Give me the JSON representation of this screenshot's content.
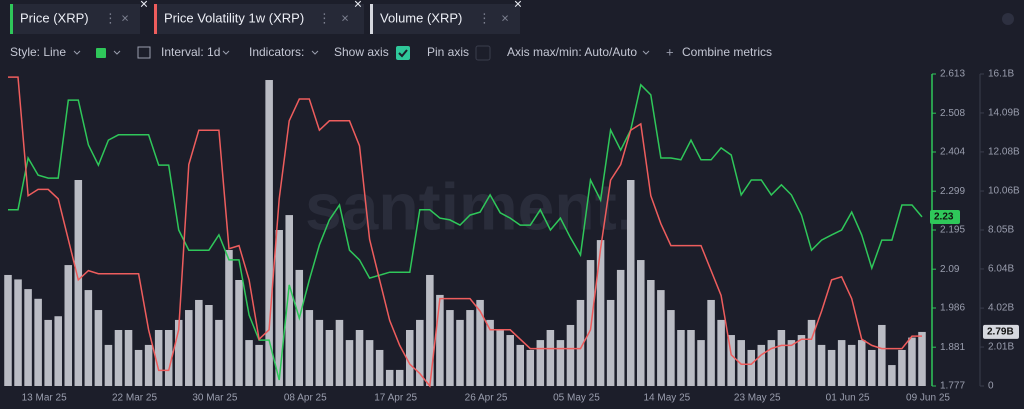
{
  "tabs": [
    "Price (XRP)",
    "Price Volatility 1w (XRP)",
    "Volume (XRP)"
  ],
  "toolbar": {
    "style": "Style: Line",
    "interval": "Interval: 1d",
    "indicators": "Indicators:",
    "show_axis": "Show axis",
    "pin_axis": "Pin axis",
    "axis_range": "Axis max/min: Auto/Auto",
    "combine": "Combine metrics"
  },
  "watermark": "santiment.",
  "chart_data": {
    "type": "line",
    "categories": [
      null,
      null,
      null,
      "13 Mar 25",
      null,
      null,
      null,
      null,
      null,
      null,
      null,
      null,
      "22 Mar 25",
      null,
      null,
      null,
      null,
      null,
      null,
      null,
      "30 Mar 25",
      null,
      null,
      null,
      null,
      null,
      null,
      null,
      null,
      "08 Apr 25",
      null,
      null,
      null,
      null,
      null,
      null,
      null,
      null,
      "17 Apr 25",
      null,
      null,
      null,
      null,
      null,
      null,
      null,
      null,
      "26 Apr 25",
      null,
      null,
      null,
      null,
      null,
      null,
      null,
      null,
      "05 May 25",
      null,
      null,
      null,
      null,
      null,
      null,
      null,
      null,
      "14 May 25",
      null,
      null,
      null,
      null,
      null,
      null,
      null,
      null,
      "23 May 25",
      null,
      null,
      null,
      null,
      null,
      null,
      null,
      null,
      "01 Jun 25",
      null,
      null,
      null,
      null,
      null,
      null,
      null,
      "09 Jun 25"
    ],
    "ylim": [
      1.777,
      2.613
    ],
    "yticks": [
      1.777,
      1.881,
      1.986,
      2.09,
      2.195,
      2.299,
      2.404,
      2.508,
      2.613
    ],
    "y2lim": [
      0,
      16.1
    ],
    "y2ticks": [
      0,
      {
        "value": 2.01,
        "label": "2.01B"
      },
      {
        "value": 4.02,
        "label": "4.02B"
      },
      {
        "value": 6.04,
        "label": "6.04B"
      },
      {
        "value": 8.05,
        "label": "8.05B"
      },
      {
        "value": 10.06,
        "label": "10.06B"
      },
      {
        "value": 12.08,
        "label": "12.08B"
      },
      {
        "value": 14.09,
        "label": "14.09B"
      },
      {
        "value": 16.1,
        "label": "16.1B"
      }
    ],
    "y3lim": [
      0,
      100
    ],
    "series": [
      {
        "name": "Price (XRP)",
        "color": "#2fc75a",
        "axis": "y",
        "last_label": "2.23",
        "values": [
          2.249,
          2.249,
          2.388,
          2.342,
          2.334,
          2.334,
          2.543,
          2.543,
          2.423,
          2.369,
          2.436,
          2.45,
          2.45,
          2.45,
          2.45,
          2.369,
          2.369,
          2.195,
          2.141,
          2.141,
          2.141,
          2.182,
          2.115,
          2.115,
          1.967,
          1.9,
          1.9,
          1.793,
          2.048,
          1.959,
          2.061,
          2.155,
          2.222,
          2.262,
          2.141,
          2.115,
          2.066,
          2.074,
          2.082,
          2.082,
          2.082,
          2.249,
          2.249,
          2.227,
          2.222,
          2.208,
          2.235,
          2.243,
          2.289,
          2.241,
          2.227,
          2.208,
          2.208,
          2.249,
          2.195,
          2.227,
          2.174,
          2.128,
          2.329,
          2.275,
          2.463,
          2.409,
          2.463,
          2.584,
          2.557,
          2.388,
          2.388,
          2.383,
          2.436,
          2.383,
          2.383,
          2.415,
          2.396,
          2.289,
          2.329,
          2.329,
          2.289,
          2.316,
          2.289,
          2.235,
          2.141,
          2.168,
          2.182,
          2.195,
          2.243,
          2.182,
          2.093,
          2.168,
          2.168,
          2.262,
          2.262,
          2.23
        ]
      },
      {
        "name": "Price Volatility 1w (XRP)",
        "color": "#ee5d5d",
        "axis": "y3",
        "values": [
          99,
          99,
          61,
          63,
          63,
          60,
          47,
          34,
          37,
          36,
          36,
          36,
          36,
          36,
          18,
          5,
          5,
          18,
          71,
          82,
          82,
          82,
          44,
          45,
          34,
          15,
          18,
          60,
          85,
          92,
          92,
          82,
          85,
          85,
          85,
          77,
          47,
          34,
          21,
          13,
          7,
          4,
          0,
          28,
          28,
          28,
          28,
          24,
          18,
          18,
          18,
          15,
          12,
          12,
          12,
          12,
          12,
          12,
          18,
          44,
          66,
          71,
          82,
          84,
          61,
          52,
          45,
          45,
          45,
          45,
          37,
          29,
          10,
          7,
          7,
          10,
          12,
          13,
          13,
          15,
          15,
          24,
          34,
          35,
          28,
          15,
          13,
          12,
          12,
          12,
          16,
          16
        ]
      },
      {
        "name": "Volume (XRP)",
        "color": "#d6d8df",
        "axis": "y2",
        "last_label": "2.79B",
        "values": [
          5.73,
          5.5,
          5.0,
          4.5,
          3.41,
          3.6,
          6.24,
          10.63,
          4.95,
          3.92,
          2.12,
          2.89,
          2.89,
          1.86,
          2.12,
          2.89,
          2.89,
          3.41,
          3.92,
          4.44,
          4.18,
          3.41,
          7.02,
          5.47,
          2.37,
          2.12,
          15.79,
          8.05,
          8.82,
          5.99,
          3.92,
          3.41,
          2.89,
          3.41,
          2.37,
          2.89,
          2.37,
          1.86,
          0.83,
          0.83,
          2.89,
          3.41,
          5.73,
          4.7,
          3.92,
          3.41,
          3.92,
          4.44,
          3.41,
          2.89,
          2.63,
          2.12,
          1.86,
          2.37,
          2.89,
          2.37,
          3.15,
          4.44,
          6.5,
          7.53,
          4.44,
          5.99,
          10.63,
          6.5,
          5.47,
          4.95,
          3.92,
          2.89,
          2.89,
          2.37,
          4.44,
          3.41,
          2.63,
          2.37,
          1.86,
          2.12,
          2.37,
          2.89,
          2.37,
          2.63,
          3.41,
          2.12,
          1.86,
          2.37,
          2.12,
          2.37,
          1.86,
          3.15,
          1.08,
          1.86,
          2.5,
          2.79
        ]
      }
    ]
  }
}
